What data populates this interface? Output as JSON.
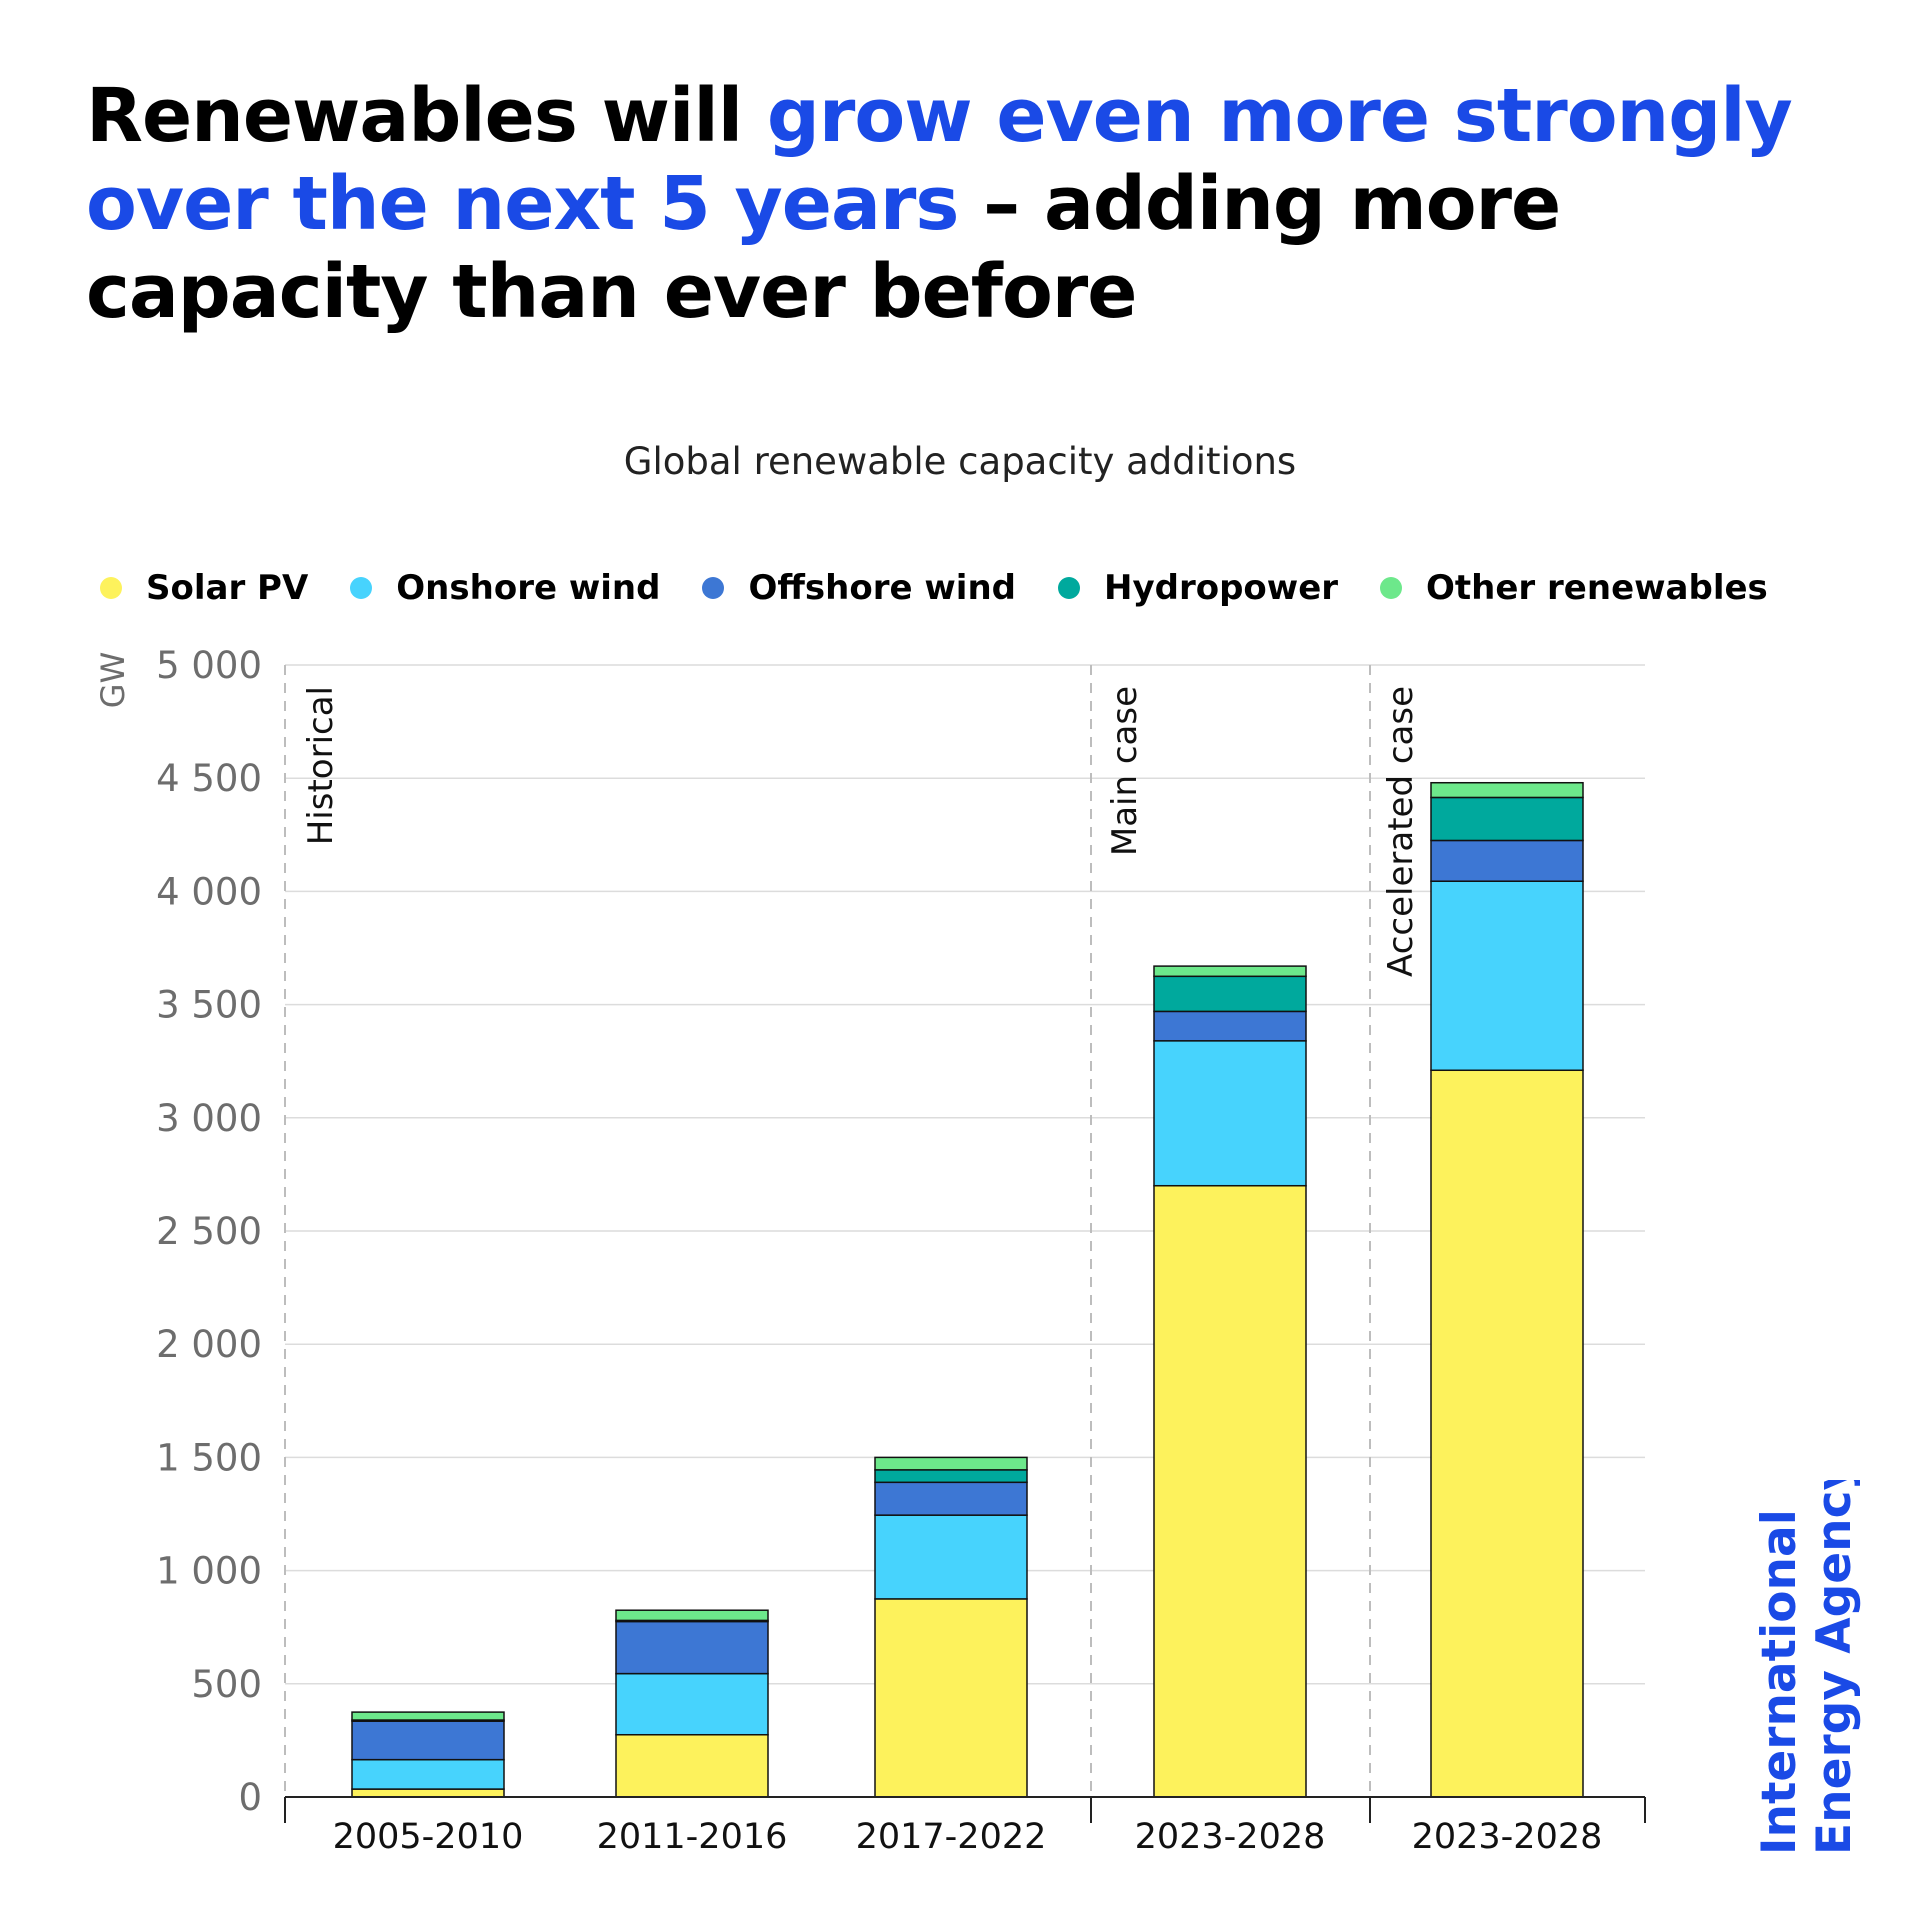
{
  "headline": {
    "part1": "Renewables will ",
    "accent": "grow even more strongly over the next 5 years",
    "part2": " – adding more capacity than ever before"
  },
  "colors": {
    "accent": "#1a4ae6",
    "solar_pv": "#fdf25c",
    "onshore_wind": "#47d3fd",
    "offshore_wind": "#3d77d4",
    "hydropower": "#00a99d",
    "other_renewables": "#6de88b"
  },
  "chart_data": {
    "type": "bar",
    "stacked": true,
    "title": "Global renewable capacity additions",
    "ylabel": "GW",
    "ylim": [
      0,
      5000
    ],
    "yticks": [
      0,
      500,
      1000,
      1500,
      2000,
      2500,
      3000,
      3500,
      4000,
      4500,
      5000
    ],
    "ytick_labels": [
      "0",
      "500",
      "1 000",
      "1 500",
      "2 000",
      "2 500",
      "3 000",
      "3 500",
      "4 000",
      "4 500",
      "5 000"
    ],
    "categories": [
      "2005-2010",
      "2011-2016",
      "2017-2022",
      "2023-2028",
      "2023-2028"
    ],
    "section_labels": [
      "Historical",
      "Main case",
      "Accelerated case"
    ],
    "legend_position": "top",
    "grid": true,
    "series": [
      {
        "name": "Solar PV",
        "color": "#fdf25c",
        "values": [
          35,
          275,
          875,
          2700,
          3210
        ]
      },
      {
        "name": "Onshore wind",
        "color": "#47d3fd",
        "values": [
          130,
          270,
          370,
          640,
          835
        ]
      },
      {
        "name": "Offshore wind",
        "color": "#3d77d4",
        "values": [
          170,
          230,
          145,
          130,
          180
        ]
      },
      {
        "name": "Hydropower",
        "color": "#00a99d",
        "values": [
          5,
          5,
          55,
          155,
          190
        ]
      },
      {
        "name": "Other renewables",
        "color": "#6de88b",
        "values": [
          35,
          45,
          55,
          45,
          65
        ]
      }
    ]
  },
  "logo": {
    "line1": "International",
    "line2": "Energy Agency"
  }
}
